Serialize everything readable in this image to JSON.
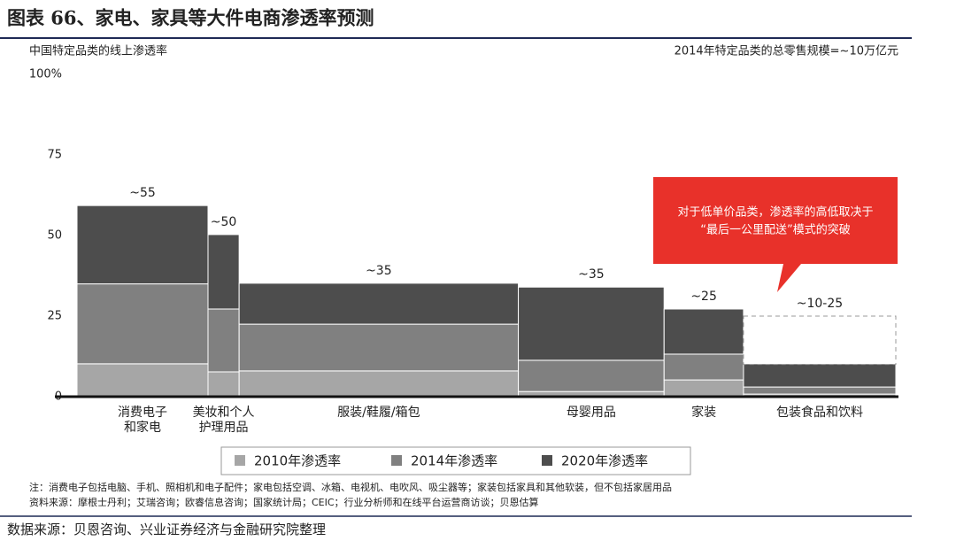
{
  "header": {
    "title": "图表 66、家电、家具等大件电商渗透率预测"
  },
  "chart_data": {
    "type": "marimekko",
    "subtitle_left": "中国特定品类的线上渗透率",
    "subtitle_right": "2014年特定品类的总零售规模=~10万亿元",
    "categories": [
      "消费电子\n和家电",
      "美妆和个人\n护理用品",
      "服装/鞋履/箱包",
      "母婴用品",
      "家装",
      "包装食品和饮料"
    ],
    "widths": [
      16,
      3.8,
      34.1,
      17.8,
      9.7,
      18.6
    ],
    "series": [
      {
        "name": "2010年渗透率",
        "color": "#a6a6a6",
        "values": [
          10.2,
          7.7,
          8,
          1.6,
          5.2,
          0.8
        ]
      },
      {
        "name": "2014年渗透率",
        "color": "#808080",
        "values": [
          24.8,
          19.5,
          14.5,
          9.7,
          8,
          2.2
        ]
      },
      {
        "name": "2020年渗透率",
        "color": "#4d4d4d",
        "values": [
          24.3,
          23.1,
          12.7,
          22.7,
          14,
          7.2
        ]
      }
    ],
    "top_labels": [
      "~55",
      "~50",
      "~35",
      "~35",
      "~25",
      "~10-25"
    ],
    "range_box": [
      10,
      25
    ],
    "ylim": [
      0,
      100
    ],
    "yticks": [
      0,
      25,
      50,
      75,
      {
        "value": 100,
        "label": "100%"
      }
    ],
    "callout": [
      "对于低单价品类，渗透率的高低取决于",
      "“最后一公里配送”模式的突破"
    ],
    "notes": [
      "注：消费电子包括电脑、手机、照相机和电子配件；家电包括空调、冰箱、电视机、电吹风、吸尘器等；家装包括家具和其他软装，但不包括家居用品",
      "资料来源：摩根士丹利；艾瑞咨询；欧睿信息咨询；国家统计局；CEIC；行业分析师和在线平台运营商访谈；贝恩估算"
    ]
  },
  "footer": {
    "source": "数据来源：贝恩咨询、兴业证券经济与金融研究院整理"
  }
}
